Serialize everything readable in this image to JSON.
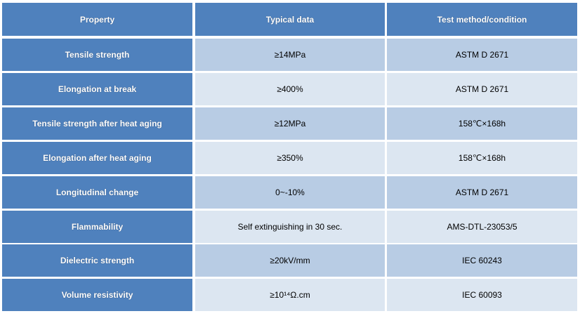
{
  "table": {
    "header": [
      "Property",
      "Typical data",
      "Test method/condition"
    ],
    "rows": [
      [
        "Tensile strength",
        "≥14MPa",
        "ASTM D 2671"
      ],
      [
        "Elongation at break",
        "≥400%",
        "ASTM D 2671"
      ],
      [
        "Tensile strength after heat aging",
        "≥12MPa",
        "158℃×168h"
      ],
      [
        "Elongation after heat aging",
        "≥350%",
        "158℃×168h"
      ],
      [
        "Longitudinal change",
        "0~-10%",
        "ASTM D 2671"
      ],
      [
        "Flammability",
        "Self extinguishing in 30 sec.",
        "AMS-DTL-23053/5"
      ],
      [
        "Dielectric strength",
        "≥20kV/mm",
        "IEC 60243"
      ],
      [
        "Volume resistivity",
        "≥10¹⁴Ω.cm",
        "IEC 60093"
      ]
    ]
  }
}
